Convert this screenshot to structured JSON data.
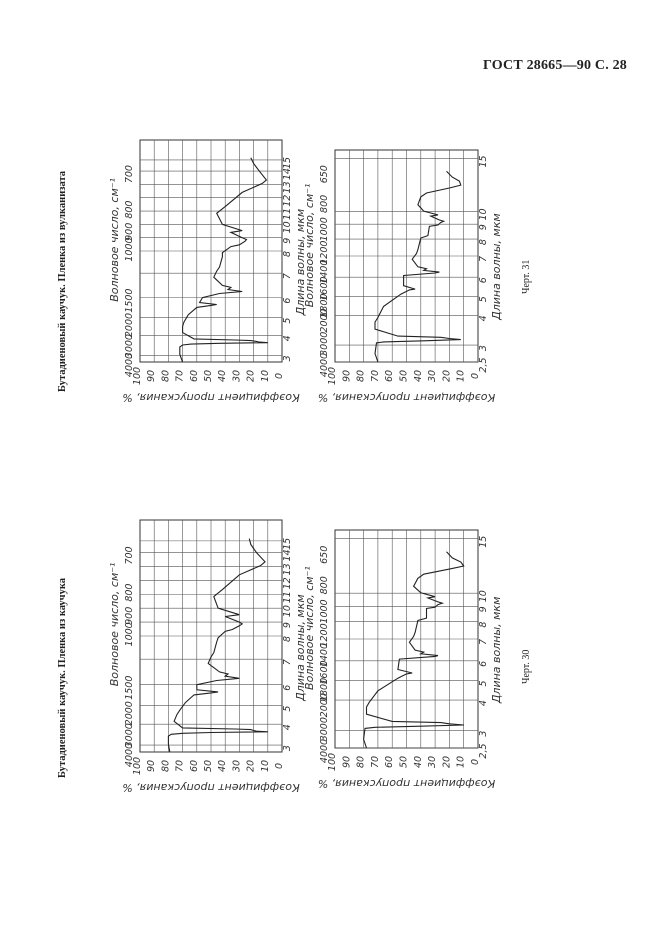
{
  "header": {
    "text": "ГОСТ 28665—90 С. 28"
  },
  "figures": [
    {
      "caption": "Бутадиеновый каучук. Пленка из каучука",
      "chart_label": "Черт. 30",
      "chart_data": [
        {
          "type": "line",
          "wavenumber_label": "Волновое число, см⁻¹",
          "wavenumber_ticks": [
            "4000",
            "3000",
            "2000",
            "1500",
            "1000",
            "900",
            "800",
            "700"
          ],
          "wavelength_label": "Длина волны, мкм",
          "wavelength_ticks": [
            "3",
            "4",
            "5",
            "6",
            "7",
            "8",
            "9",
            "10",
            "11",
            "12",
            "13",
            "14",
            "15"
          ],
          "y_label": "Коэффициент пропускания, %",
          "y_ticks": [
            "100",
            "90",
            "80",
            "70",
            "60",
            "50",
            "40",
            "30",
            "20",
            "10",
            "0"
          ],
          "ylim": [
            0,
            100
          ],
          "x": [
            4000,
            3600,
            3200,
            3100,
            3050,
            3010,
            2980,
            2950,
            2920,
            2880,
            2850,
            2800,
            2500,
            2200,
            2000,
            1850,
            1700,
            1660,
            1640,
            1600,
            1500,
            1460,
            1440,
            1420,
            1400,
            1380,
            1300,
            1240,
            1200,
            1100,
            1060,
            1000,
            990,
            970,
            960,
            950,
            920,
            910,
            880,
            830,
            800,
            760,
            735,
            725,
            700,
            680,
            665
          ],
          "y": [
            79,
            80,
            80,
            78,
            70,
            50,
            10,
            18,
            20,
            22,
            33,
            70,
            76,
            74,
            72,
            68,
            62,
            50,
            45,
            60,
            60,
            46,
            30,
            40,
            38,
            44,
            52,
            50,
            48,
            46,
            45,
            40,
            35,
            30,
            28,
            30,
            40,
            30,
            45,
            48,
            42,
            30,
            15,
            12,
            18,
            22,
            23
          ]
        },
        {
          "type": "line",
          "wavenumber_label": "Волновое число, см⁻¹",
          "wavenumber_ticks": [
            "4000",
            "3000",
            "2000",
            "1800",
            "1600",
            "1400",
            "1200",
            "1000",
            "800",
            "650"
          ],
          "wavelength_label": "Длина волны, мкм",
          "wavelength_ticks": [
            "2,5",
            "3",
            "4",
            "5",
            "6",
            "7",
            "8",
            "9",
            "10",
            "15"
          ],
          "y_label": "Коэффициент пропускания, %",
          "y_ticks": [
            "100",
            "90",
            "80",
            "70",
            "60",
            "50",
            "40",
            "30",
            "20",
            "10",
            "0"
          ],
          "ylim": [
            0,
            100
          ],
          "x": [
            4000,
            3600,
            3100,
            3050,
            3000,
            2950,
            2900,
            2850,
            2800,
            2500,
            2200,
            2000,
            1850,
            1700,
            1650,
            1640,
            1600,
            1480,
            1450,
            1440,
            1420,
            1400,
            1380,
            1300,
            1240,
            1200,
            1100,
            1080,
            1000,
            990,
            970,
            960,
            950,
            920,
            910,
            880,
            830,
            780,
            760,
            735,
            720,
            700,
            680,
            650
          ],
          "y": [
            78,
            80,
            79,
            72,
            40,
            10,
            20,
            26,
            60,
            78,
            78,
            76,
            70,
            56,
            50,
            46,
            56,
            55,
            30,
            28,
            40,
            38,
            44,
            48,
            45,
            44,
            42,
            36,
            36,
            30,
            28,
            25,
            28,
            35,
            30,
            40,
            45,
            42,
            38,
            20,
            10,
            12,
            18,
            22
          ]
        }
      ]
    },
    {
      "caption": "Бутадиеновый каучук. Пленка из вулканизата",
      "chart_label": "Черт. 31",
      "chart_data": [
        {
          "type": "line",
          "wavenumber_label": "Волновое число, см⁻¹",
          "wavenumber_ticks": [
            "4000",
            "3000",
            "2000",
            "1500",
            "1000",
            "900",
            "800",
            "700"
          ],
          "wavelength_label": "Длина волны, мкм",
          "wavelength_ticks": [
            "3",
            "4",
            "5",
            "6",
            "7",
            "8",
            "9",
            "10",
            "11",
            "12",
            "13",
            "14",
            "15"
          ],
          "y_label": "Коэффициент пропускания, %",
          "y_ticks": [
            "100",
            "90",
            "80",
            "70",
            "60",
            "50",
            "40",
            "30",
            "20",
            "10",
            "0"
          ],
          "ylim": [
            0,
            100
          ],
          "x": [
            4000,
            3600,
            3200,
            3100,
            3050,
            3010,
            2980,
            2950,
            2920,
            2880,
            2850,
            2800,
            2500,
            2200,
            2000,
            1850,
            1700,
            1660,
            1640,
            1600,
            1500,
            1460,
            1440,
            1420,
            1400,
            1380,
            1300,
            1240,
            1200,
            1100,
            1060,
            1000,
            990,
            970,
            960,
            950,
            920,
            910,
            880,
            830,
            800,
            760,
            735,
            725,
            700,
            680,
            665
          ],
          "y": [
            70,
            72,
            72,
            70,
            64,
            44,
            10,
            16,
            18,
            22,
            33,
            62,
            70,
            70,
            69,
            66,
            60,
            50,
            46,
            58,
            56,
            44,
            28,
            38,
            36,
            42,
            48,
            46,
            44,
            42,
            42,
            36,
            30,
            26,
            25,
            28,
            36,
            28,
            42,
            46,
            40,
            28,
            14,
            11,
            16,
            20,
            22
          ]
        },
        {
          "type": "line",
          "wavenumber_label": "Волновое число, см⁻¹",
          "wavenumber_ticks": [
            "4000",
            "3000",
            "2000",
            "1800",
            "1600",
            "1400",
            "1200",
            "1000",
            "800",
            "650"
          ],
          "wavelength_label": "Длина волны, мкм",
          "wavelength_ticks": [
            "2,5",
            "3",
            "4",
            "5",
            "6",
            "7",
            "8",
            "9",
            "10",
            "15"
          ],
          "y_label": "Коэффициент пропускания, %",
          "y_ticks": [
            "100",
            "90",
            "80",
            "70",
            "60",
            "50",
            "40",
            "30",
            "20",
            "10",
            "0"
          ],
          "ylim": [
            0,
            100
          ],
          "x": [
            4000,
            3600,
            3100,
            3050,
            3000,
            2950,
            2900,
            2850,
            2800,
            2500,
            2200,
            2000,
            1850,
            1700,
            1650,
            1640,
            1600,
            1480,
            1450,
            1440,
            1420,
            1400,
            1380,
            1300,
            1240,
            1200,
            1100,
            1080,
            1000,
            990,
            970,
            960,
            950,
            920,
            910,
            880,
            830,
            780,
            760,
            735,
            720,
            700,
            680,
            650
          ],
          "y": [
            70,
            72,
            71,
            66,
            38,
            12,
            20,
            26,
            56,
            72,
            72,
            70,
            66,
            54,
            48,
            44,
            52,
            52,
            30,
            27,
            38,
            36,
            42,
            46,
            43,
            42,
            40,
            35,
            34,
            28,
            26,
            24,
            27,
            33,
            28,
            38,
            42,
            40,
            36,
            20,
            12,
            13,
            18,
            22
          ]
        }
      ]
    }
  ]
}
